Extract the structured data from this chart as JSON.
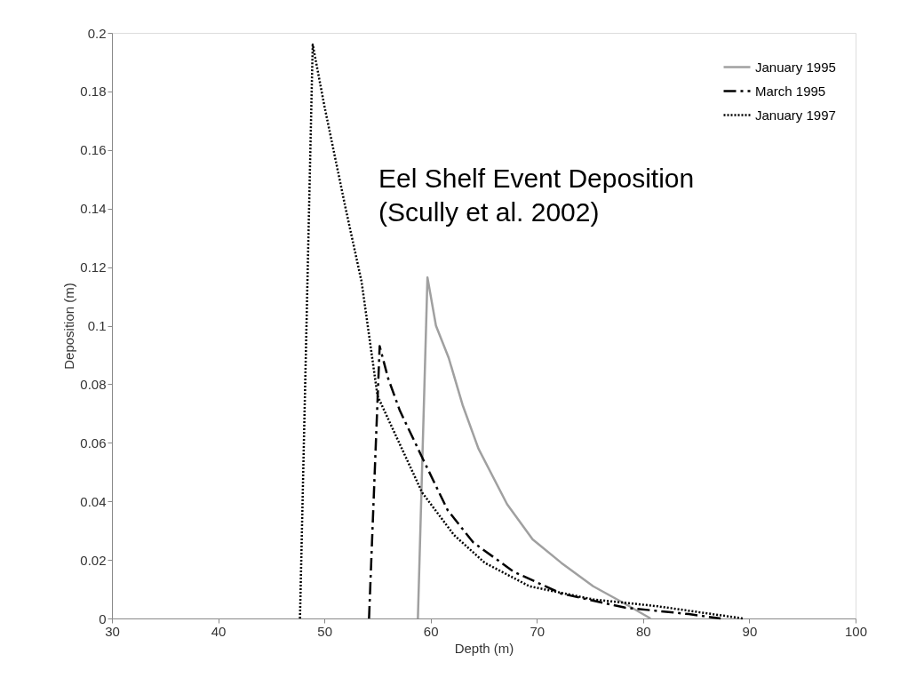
{
  "chart_data": {
    "type": "line",
    "xlabel": "Depth (m)",
    "ylabel": "Deposition (m)",
    "xlim": [
      30,
      100
    ],
    "xticks": [
      30,
      40,
      50,
      60,
      70,
      80,
      90,
      100
    ],
    "ylim": [
      0,
      0.2
    ],
    "yticks": [
      0,
      0.02,
      0.04,
      0.06,
      0.08,
      0.1,
      0.12,
      0.14,
      0.16,
      0.18,
      0.2
    ],
    "grid": false,
    "legend": "top right",
    "marker": "none",
    "annotations": [
      {
        "text": "Eel Shelf Event Deposition\n(Scully et al. 2002)"
      }
    ],
    "series": [
      {
        "name": "January 1995",
        "color": "#a0a0a0",
        "line_style": "solid",
        "x": [
          58.8,
          59.7,
          60.5,
          61.7,
          63,
          64.5,
          67.2,
          69.6,
          72.3,
          75.3,
          78.3,
          80.7
        ],
        "values": [
          0,
          0.1165,
          0.1,
          0.089,
          0.073,
          0.058,
          0.039,
          0.027,
          0.019,
          0.011,
          0.005,
          0
        ]
      },
      {
        "name": "March 1995",
        "color": "#000000",
        "line_style": "dashed",
        "x": [
          54.2,
          55.2,
          56,
          57.1,
          59.2,
          61.6,
          64,
          67.8,
          72.3,
          78.3,
          84.3,
          87.3
        ],
        "values": [
          0,
          0.093,
          0.082,
          0.071,
          0.055,
          0.037,
          0.026,
          0.016,
          0.0085,
          0.0037,
          0.0015,
          0
        ]
      },
      {
        "name": "January 1997",
        "color": "#000000",
        "line_style": "dotted",
        "x": [
          47.7,
          48.9,
          50,
          52,
          53.5,
          55,
          59.2,
          62.2,
          65.1,
          69.3,
          75.3,
          81.3,
          89.4
        ],
        "values": [
          0,
          0.196,
          0.175,
          0.14,
          0.115,
          0.076,
          0.043,
          0.0285,
          0.019,
          0.011,
          0.0065,
          0.0042,
          0
        ]
      }
    ]
  }
}
